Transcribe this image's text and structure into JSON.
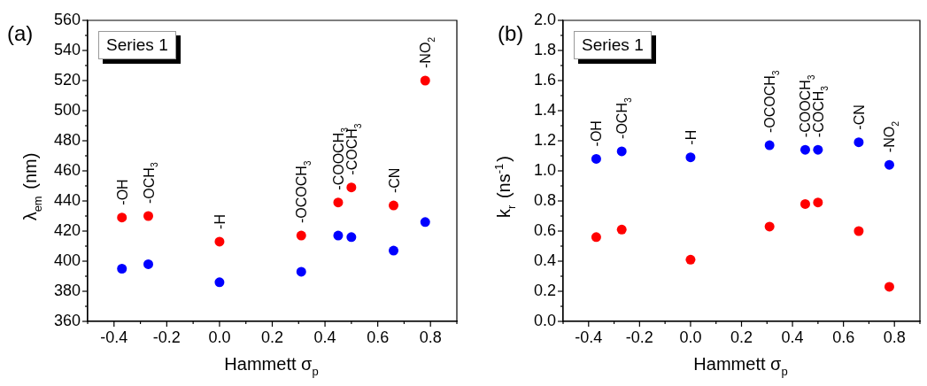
{
  "chart_data": [
    {
      "type": "scatter",
      "title": "(a)",
      "xlabel": "Hammett σ$_{p}$",
      "ylabel": "λ$_{em}$ (nm)",
      "x": [
        -0.37,
        -0.27,
        0,
        0.31,
        0.45,
        0.5,
        0.66,
        0.78
      ],
      "series": [
        {
          "color": "#ff0000",
          "values": [
            429,
            430,
            413,
            417,
            439,
            449,
            437,
            520
          ]
        },
        {
          "color": "#0000ff",
          "values": [
            395,
            398,
            386,
            393,
            417,
            416,
            407,
            426
          ]
        }
      ],
      "xlim": [
        -0.5,
        0.9
      ],
      "xticks": [
        {
          "value": -0.5,
          "label": null
        },
        -0.4,
        {
          "value": -0.3,
          "label": null
        },
        -0.2,
        {
          "value": -0.1,
          "label": null
        },
        {
          "value": 0,
          "label": "0.0"
        },
        {
          "value": 0.1,
          "label": null
        },
        0.2,
        {
          "value": 0.3,
          "label": null
        },
        0.4,
        {
          "value": 0.5,
          "label": null
        },
        0.6,
        {
          "value": 0.7,
          "label": null
        },
        0.8,
        {
          "value": 0.9,
          "label": null
        }
      ],
      "ylim": [
        360,
        560
      ],
      "yticks": [
        360,
        {
          "value": 370,
          "label": null
        },
        380,
        {
          "value": 390,
          "label": null
        },
        400,
        {
          "value": 410,
          "label": null
        },
        420,
        {
          "value": 430,
          "label": null
        },
        440,
        {
          "value": 450,
          "label": null
        },
        460,
        {
          "value": 470,
          "label": null
        },
        480,
        {
          "value": 490,
          "label": null
        },
        500,
        {
          "value": 510,
          "label": null
        },
        520,
        {
          "value": 530,
          "label": null
        },
        540,
        {
          "value": 550,
          "label": null
        },
        560
      ],
      "grid": false,
      "marker": "circle",
      "annotations": [
        "Series 1",
        {
          "text": "-OH",
          "x": -0.37,
          "y": 429
        },
        {
          "text": "-OCH$_{3}$",
          "x": -0.27,
          "y": 430
        },
        {
          "text": "-H",
          "x": 0,
          "y": 413
        },
        {
          "text": "-OCOCH$_{3}$",
          "x": 0.31,
          "y": 417
        },
        {
          "text": "-COOCH$_{3}$",
          "x": 0.45,
          "y": 439
        },
        {
          "text": "-COCH$_{3}$",
          "x": 0.5,
          "y": 449
        },
        {
          "text": "-CN",
          "x": 0.66,
          "y": 437
        },
        {
          "text": "-NO$_{2}$",
          "x": 0.78,
          "y": 520
        }
      ]
    },
    {
      "type": "scatter",
      "title": "(b)",
      "xlabel": "Hammett σ$_{p}$",
      "ylabel": "k$_{r}$ (ns$^{-1}$)",
      "x": [
        -0.37,
        -0.27,
        0,
        0.31,
        0.45,
        0.5,
        0.66,
        0.78
      ],
      "series": [
        {
          "color": "#0000ff",
          "values": [
            1.08,
            1.13,
            1.09,
            1.17,
            1.14,
            1.14,
            1.19,
            1.04
          ]
        },
        {
          "color": "#ff0000",
          "values": [
            0.56,
            0.61,
            0.41,
            0.63,
            0.78,
            0.79,
            0.6,
            0.23
          ]
        }
      ],
      "xlim": [
        -0.5,
        0.9
      ],
      "xticks": [
        {
          "value": -0.5,
          "label": null
        },
        -0.4,
        {
          "value": -0.3,
          "label": null
        },
        -0.2,
        {
          "value": -0.1,
          "label": null
        },
        {
          "value": 0,
          "label": "0.0"
        },
        {
          "value": 0.1,
          "label": null
        },
        0.2,
        {
          "value": 0.3,
          "label": null
        },
        0.4,
        {
          "value": 0.5,
          "label": null
        },
        0.6,
        {
          "value": 0.7,
          "label": null
        },
        0.8,
        {
          "value": 0.9,
          "label": null
        }
      ],
      "ylim": [
        0,
        2
      ],
      "yticks": [
        {
          "value": 0,
          "label": "0.0"
        },
        {
          "value": 0.1,
          "label": null
        },
        0.2,
        {
          "value": 0.3,
          "label": null
        },
        0.4,
        {
          "value": 0.5,
          "label": null
        },
        0.6,
        {
          "value": 0.7,
          "label": null
        },
        0.8,
        {
          "value": 0.9,
          "label": null
        },
        {
          "value": 1,
          "label": "1.0"
        },
        {
          "value": 1.1,
          "label": null
        },
        1.2,
        {
          "value": 1.3,
          "label": null
        },
        1.4,
        {
          "value": 1.5,
          "label": null
        },
        1.6,
        {
          "value": 1.7,
          "label": null
        },
        1.8,
        {
          "value": 1.9,
          "label": null
        },
        {
          "value": 2,
          "label": "2.0"
        }
      ],
      "grid": false,
      "marker": "circle",
      "annotations": [
        "Series 1",
        {
          "text": "-OH",
          "x": -0.37,
          "y": 1.08
        },
        {
          "text": "-OCH$_{3}$",
          "x": -0.27,
          "y": 1.13
        },
        {
          "text": "-H",
          "x": 0,
          "y": 1.09
        },
        {
          "text": "-OCOCH$_{3}$",
          "x": 0.31,
          "y": 1.17
        },
        {
          "text": "-COOCH$_{3}$",
          "x": 0.45,
          "y": 1.14
        },
        {
          "text": "-COCH$_{3}$",
          "x": 0.5,
          "y": 1.14
        },
        {
          "text": "-CN",
          "x": 0.66,
          "y": 1.19
        },
        {
          "text": "-NO$_{2}$",
          "x": 0.78,
          "y": 1.04
        }
      ]
    }
  ]
}
